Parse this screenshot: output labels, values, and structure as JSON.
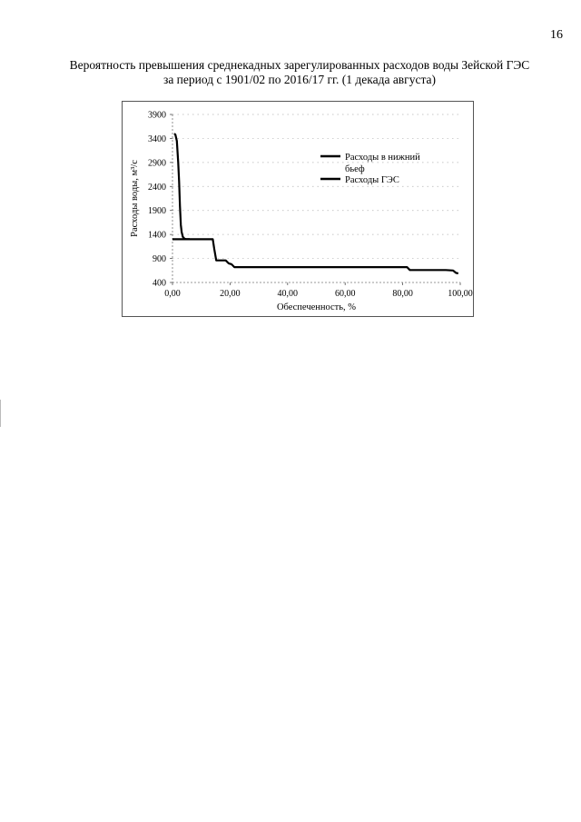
{
  "page": {
    "number": "16",
    "title_line1": "Вероятность превышения среднекадных зарегулированных расходов воды Зейской ГЭС",
    "title_line2": "за период с 1901/02 по 2016/17 гг. (1 декада августа)"
  },
  "chart_data": {
    "type": "line",
    "title": "",
    "xlabel": "Обеспеченность, %",
    "ylabel": "Расходы воды, м³/с",
    "xlim": [
      0,
      100
    ],
    "ylim": [
      400,
      3900
    ],
    "x_ticks": [
      0,
      20,
      40,
      60,
      80,
      100
    ],
    "x_tick_labels": [
      "0,00",
      "20,00",
      "40,00",
      "60,00",
      "80,00",
      "100,00"
    ],
    "y_ticks": [
      400,
      900,
      1400,
      1900,
      2400,
      2900,
      3400,
      3900
    ],
    "y_tick_labels": [
      "400",
      "900",
      "1400",
      "1900",
      "2400",
      "2900",
      "3400",
      "3900"
    ],
    "grid": true,
    "legend_position": "upper-right inside plot",
    "series": [
      {
        "name": "Расходы в нижний бьеф",
        "color": "#000000",
        "points": [
          [
            0.0,
            1300
          ],
          [
            2.0,
            1300
          ],
          [
            4.0,
            1300
          ],
          [
            6.0,
            1300
          ],
          [
            8.0,
            1300
          ],
          [
            10.0,
            1300
          ],
          [
            12.0,
            1300
          ],
          [
            14.0,
            1300
          ],
          [
            14.5,
            1100
          ],
          [
            15.2,
            860
          ],
          [
            17.0,
            860
          ],
          [
            18.5,
            860
          ],
          [
            19.5,
            800
          ],
          [
            20.5,
            780
          ],
          [
            21.5,
            720
          ],
          [
            25.0,
            720
          ],
          [
            40.0,
            720
          ],
          [
            60.0,
            720
          ],
          [
            70.0,
            720
          ],
          [
            80.0,
            720
          ],
          [
            81.5,
            720
          ],
          [
            82.5,
            660
          ],
          [
            86.0,
            660
          ],
          [
            90.0,
            660
          ],
          [
            95.0,
            660
          ],
          [
            97.5,
            650
          ],
          [
            98.5,
            600
          ],
          [
            99.3,
            590
          ]
        ]
      },
      {
        "name": "Расходы ГЭС",
        "color": "#000000",
        "points": [
          [
            0.6,
            3500
          ],
          [
            1.0,
            3480
          ],
          [
            1.5,
            3350
          ],
          [
            2.0,
            2900
          ],
          [
            2.3,
            2500
          ],
          [
            2.6,
            2000
          ],
          [
            2.9,
            1600
          ],
          [
            3.2,
            1450
          ],
          [
            3.6,
            1350
          ],
          [
            4.2,
            1310
          ],
          [
            5.0,
            1300
          ],
          [
            6.0,
            1300
          ]
        ]
      }
    ]
  }
}
